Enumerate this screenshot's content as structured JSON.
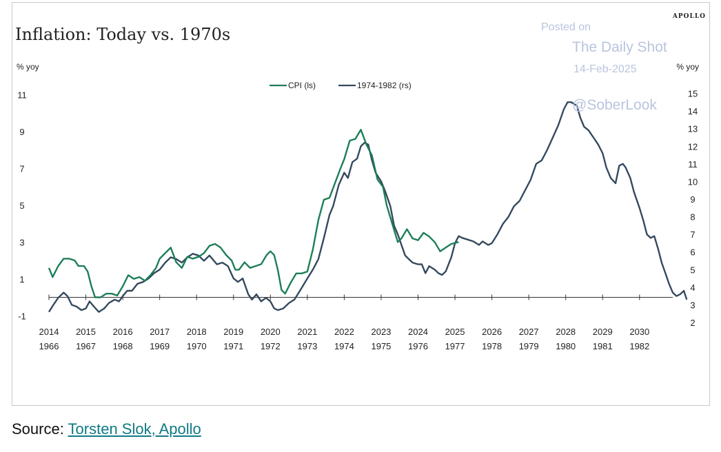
{
  "chart_data": {
    "type": "line",
    "title": "Inflation: Today vs. 1970s",
    "brand": "APOLLO",
    "left_axis_label": "% yoy",
    "right_axis_label": "% yoy",
    "y_left": {
      "ylim": [
        -1.7,
        11.5
      ],
      "ticks": [
        11,
        9,
        7,
        5,
        3,
        1,
        -1
      ]
    },
    "y_right": {
      "ylim": [
        1.65,
        15.45
      ],
      "ticks": [
        15,
        14,
        13,
        12,
        11,
        10,
        9,
        8,
        7,
        6,
        5,
        4,
        3,
        2
      ]
    },
    "x_axis_top": {
      "labels": [
        "2014",
        "2015",
        "2016",
        "2017",
        "2018",
        "2019",
        "2020",
        "2021",
        "2022",
        "2023",
        "2024",
        "2025",
        "2026",
        "2027",
        "2028",
        "2029",
        "2030"
      ],
      "start": 2014,
      "end": 2030.9
    },
    "x_axis_bottom": {
      "labels": [
        "1966",
        "1967",
        "1968",
        "1969",
        "1970",
        "1971",
        "1972",
        "1973",
        "1974",
        "1975",
        "1976",
        "1977",
        "1978",
        "1979",
        "1980",
        "1981",
        "1982"
      ]
    },
    "legend": {
      "placement": "top-center"
    },
    "series": [
      {
        "name": "CPI (ls)",
        "axis": "left",
        "color": "#1c7e57",
        "points": [
          [
            2014.0,
            1.6
          ],
          [
            2014.1,
            1.1
          ],
          [
            2014.25,
            1.7
          ],
          [
            2014.4,
            2.1
          ],
          [
            2014.55,
            2.1
          ],
          [
            2014.7,
            2.0
          ],
          [
            2014.8,
            1.7
          ],
          [
            2014.95,
            1.7
          ],
          [
            2015.05,
            1.4
          ],
          [
            2015.15,
            0.6
          ],
          [
            2015.25,
            0.0
          ],
          [
            2015.4,
            0.0
          ],
          [
            2015.55,
            0.2
          ],
          [
            2015.7,
            0.2
          ],
          [
            2015.85,
            0.1
          ],
          [
            2016.0,
            0.6
          ],
          [
            2016.15,
            1.2
          ],
          [
            2016.3,
            1.0
          ],
          [
            2016.45,
            1.1
          ],
          [
            2016.6,
            0.9
          ],
          [
            2016.75,
            1.2
          ],
          [
            2016.9,
            1.6
          ],
          [
            2017.0,
            2.1
          ],
          [
            2017.15,
            2.4
          ],
          [
            2017.3,
            2.7
          ],
          [
            2017.45,
            1.9
          ],
          [
            2017.6,
            1.6
          ],
          [
            2017.75,
            2.2
          ],
          [
            2017.9,
            2.1
          ],
          [
            2018.05,
            2.2
          ],
          [
            2018.2,
            2.4
          ],
          [
            2018.35,
            2.8
          ],
          [
            2018.5,
            2.9
          ],
          [
            2018.65,
            2.7
          ],
          [
            2018.8,
            2.3
          ],
          [
            2018.95,
            2.0
          ],
          [
            2019.05,
            1.5
          ],
          [
            2019.15,
            1.5
          ],
          [
            2019.3,
            1.9
          ],
          [
            2019.45,
            1.6
          ],
          [
            2019.6,
            1.7
          ],
          [
            2019.75,
            1.8
          ],
          [
            2019.9,
            2.3
          ],
          [
            2020.0,
            2.5
          ],
          [
            2020.1,
            2.3
          ],
          [
            2020.2,
            1.5
          ],
          [
            2020.3,
            0.4
          ],
          [
            2020.4,
            0.2
          ],
          [
            2020.55,
            0.8
          ],
          [
            2020.7,
            1.3
          ],
          [
            2020.85,
            1.3
          ],
          [
            2021.0,
            1.4
          ],
          [
            2021.15,
            2.6
          ],
          [
            2021.3,
            4.2
          ],
          [
            2021.45,
            5.3
          ],
          [
            2021.6,
            5.4
          ],
          [
            2021.75,
            6.2
          ],
          [
            2021.9,
            7.0
          ],
          [
            2022.0,
            7.5
          ],
          [
            2022.15,
            8.5
          ],
          [
            2022.3,
            8.6
          ],
          [
            2022.45,
            9.1
          ],
          [
            2022.6,
            8.3
          ],
          [
            2022.75,
            7.7
          ],
          [
            2022.9,
            6.4
          ],
          [
            2023.05,
            6.0
          ],
          [
            2023.15,
            5.0
          ],
          [
            2023.3,
            4.0
          ],
          [
            2023.45,
            3.0
          ],
          [
            2023.55,
            3.2
          ],
          [
            2023.7,
            3.7
          ],
          [
            2023.85,
            3.2
          ],
          [
            2024.0,
            3.1
          ],
          [
            2024.15,
            3.5
          ],
          [
            2024.3,
            3.3
          ],
          [
            2024.45,
            3.0
          ],
          [
            2024.6,
            2.5
          ],
          [
            2024.75,
            2.7
          ],
          [
            2024.9,
            2.9
          ],
          [
            2025.1,
            3.0
          ]
        ]
      },
      {
        "name": "1974-1982 (rs)",
        "axis": "right",
        "color": "#34495e",
        "points": [
          [
            2014.0,
            2.6
          ],
          [
            2014.12,
            3.0
          ],
          [
            2014.25,
            3.4
          ],
          [
            2014.4,
            3.7
          ],
          [
            2014.5,
            3.5
          ],
          [
            2014.62,
            3.0
          ],
          [
            2014.75,
            2.9
          ],
          [
            2014.88,
            2.7
          ],
          [
            2015.0,
            2.8
          ],
          [
            2015.1,
            3.2
          ],
          [
            2015.22,
            2.9
          ],
          [
            2015.35,
            2.6
          ],
          [
            2015.5,
            2.8
          ],
          [
            2015.62,
            3.1
          ],
          [
            2015.78,
            3.3
          ],
          [
            2015.9,
            3.2
          ],
          [
            2016.0,
            3.5
          ],
          [
            2016.12,
            3.8
          ],
          [
            2016.25,
            3.8
          ],
          [
            2016.4,
            4.2
          ],
          [
            2016.55,
            4.3
          ],
          [
            2016.7,
            4.5
          ],
          [
            2016.85,
            4.8
          ],
          [
            2017.0,
            5.0
          ],
          [
            2017.15,
            5.4
          ],
          [
            2017.3,
            5.7
          ],
          [
            2017.45,
            5.6
          ],
          [
            2017.6,
            5.4
          ],
          [
            2017.75,
            5.7
          ],
          [
            2017.9,
            5.9
          ],
          [
            2018.05,
            5.8
          ],
          [
            2018.2,
            5.5
          ],
          [
            2018.35,
            5.8
          ],
          [
            2018.55,
            5.3
          ],
          [
            2018.7,
            5.4
          ],
          [
            2018.85,
            5.2
          ],
          [
            2019.0,
            4.5
          ],
          [
            2019.12,
            4.3
          ],
          [
            2019.25,
            4.5
          ],
          [
            2019.4,
            3.6
          ],
          [
            2019.5,
            3.3
          ],
          [
            2019.62,
            3.6
          ],
          [
            2019.75,
            3.2
          ],
          [
            2019.88,
            3.4
          ],
          [
            2020.0,
            3.2
          ],
          [
            2020.1,
            2.8
          ],
          [
            2020.2,
            2.7
          ],
          [
            2020.35,
            2.8
          ],
          [
            2020.5,
            3.1
          ],
          [
            2020.65,
            3.3
          ],
          [
            2020.8,
            3.8
          ],
          [
            2021.0,
            4.5
          ],
          [
            2021.15,
            5.0
          ],
          [
            2021.3,
            5.6
          ],
          [
            2021.45,
            6.8
          ],
          [
            2021.6,
            8.1
          ],
          [
            2021.7,
            8.6
          ],
          [
            2021.85,
            9.8
          ],
          [
            2022.0,
            10.5
          ],
          [
            2022.1,
            10.2
          ],
          [
            2022.22,
            11.1
          ],
          [
            2022.35,
            11.3
          ],
          [
            2022.45,
            12.0
          ],
          [
            2022.55,
            12.2
          ],
          [
            2022.65,
            12.1
          ],
          [
            2022.75,
            11.2
          ],
          [
            2022.85,
            10.5
          ],
          [
            2023.0,
            10.0
          ],
          [
            2023.1,
            9.5
          ],
          [
            2023.25,
            8.6
          ],
          [
            2023.35,
            7.5
          ],
          [
            2023.45,
            7.0
          ],
          [
            2023.55,
            6.4
          ],
          [
            2023.65,
            5.8
          ],
          [
            2023.75,
            5.6
          ],
          [
            2023.85,
            5.4
          ],
          [
            2024.0,
            5.3
          ],
          [
            2024.1,
            5.3
          ],
          [
            2024.2,
            4.8
          ],
          [
            2024.3,
            5.2
          ],
          [
            2024.45,
            5.0
          ],
          [
            2024.55,
            4.8
          ],
          [
            2024.65,
            4.7
          ],
          [
            2024.75,
            4.9
          ],
          [
            2024.9,
            5.7
          ],
          [
            2025.0,
            6.5
          ],
          [
            2025.1,
            6.9
          ],
          [
            2025.2,
            6.8
          ],
          [
            2025.35,
            6.7
          ],
          [
            2025.5,
            6.6
          ],
          [
            2025.65,
            6.4
          ],
          [
            2025.75,
            6.6
          ],
          [
            2025.9,
            6.4
          ],
          [
            2026.0,
            6.5
          ],
          [
            2026.15,
            7.0
          ],
          [
            2026.3,
            7.6
          ],
          [
            2026.45,
            8.0
          ],
          [
            2026.6,
            8.6
          ],
          [
            2026.75,
            8.9
          ],
          [
            2026.9,
            9.5
          ],
          [
            2027.05,
            10.1
          ],
          [
            2027.2,
            11.0
          ],
          [
            2027.35,
            11.2
          ],
          [
            2027.5,
            11.8
          ],
          [
            2027.65,
            12.5
          ],
          [
            2027.8,
            13.2
          ],
          [
            2027.95,
            14.1
          ],
          [
            2028.05,
            14.5
          ],
          [
            2028.15,
            14.5
          ],
          [
            2028.3,
            14.3
          ],
          [
            2028.4,
            13.6
          ],
          [
            2028.5,
            13.1
          ],
          [
            2028.62,
            12.9
          ],
          [
            2028.75,
            12.5
          ],
          [
            2028.88,
            12.1
          ],
          [
            2029.0,
            11.6
          ],
          [
            2029.1,
            10.8
          ],
          [
            2029.22,
            10.2
          ],
          [
            2029.35,
            9.9
          ],
          [
            2029.45,
            10.9
          ],
          [
            2029.55,
            11.0
          ],
          [
            2029.62,
            10.8
          ],
          [
            2029.75,
            10.2
          ],
          [
            2029.85,
            9.4
          ],
          [
            2030.0,
            8.5
          ],
          [
            2030.1,
            7.8
          ],
          [
            2030.2,
            7.0
          ],
          [
            2030.3,
            6.8
          ],
          [
            2030.4,
            6.9
          ],
          [
            2030.5,
            6.2
          ],
          [
            2030.6,
            5.4
          ],
          [
            2030.7,
            4.8
          ],
          [
            2030.8,
            4.2
          ],
          [
            2030.9,
            3.7
          ],
          [
            2031.0,
            3.5
          ],
          [
            2031.1,
            3.6
          ],
          [
            2031.2,
            3.8
          ],
          [
            2031.28,
            3.3
          ]
        ]
      }
    ]
  },
  "watermark": {
    "posted_on": "Posted on",
    "site": "The Daily Shot",
    "date": "14-Feb-2025",
    "handle": "@SoberLook"
  },
  "source": {
    "prefix": "Source: ",
    "link_text": "Torsten Slok, Apollo"
  }
}
